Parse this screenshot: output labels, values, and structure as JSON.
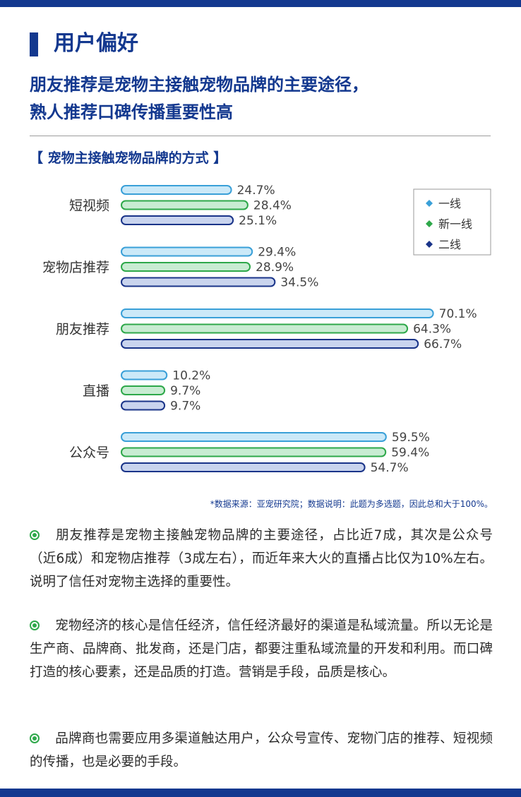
{
  "section": {
    "title": "用户偏好"
  },
  "headline": {
    "line1": "朋友推荐是宠物主接触宠物品牌的主要途径，",
    "line2": "熟人推荐口碑传播重要性高"
  },
  "chart_data": {
    "type": "bar",
    "orientation": "horizontal",
    "title": "【 宠物主接触宠物品牌的方式 】",
    "categories": [
      "短视频",
      "宠物店推荐",
      "朋友推荐",
      "直播",
      "公众号"
    ],
    "series": [
      {
        "name": "一线",
        "values": [
          24.7,
          29.4,
          70.1,
          10.2,
          59.5
        ],
        "fill": "#cbe9f8",
        "stroke": "#3aa0d8",
        "marker": "#3aa0d8"
      },
      {
        "name": "新一线",
        "values": [
          28.4,
          28.9,
          64.3,
          9.7,
          59.4
        ],
        "fill": "#c8ecd2",
        "stroke": "#2ea84a",
        "marker": "#2ea84a"
      },
      {
        "name": "二线",
        "values": [
          25.1,
          34.5,
          66.7,
          9.7,
          54.7
        ],
        "fill": "#c9d4ee",
        "stroke": "#1a3489",
        "marker": "#1a3489"
      }
    ],
    "value_suffix": "%",
    "xlim": [
      0,
      100
    ],
    "legend_position": "top-right"
  },
  "source": "*数据来源：亚宠研究院；数据说明：此题为多选题，因此总和大于100%。",
  "paragraphs": [
    "朋友推荐是宠物主接触宠物品牌的主要途径，占比近7成，其次是公众号（近6成）和宠物店推荐（3成左右），而近年来大火的直播占比仅为10%左右。说明了信任对宠物主选择的重要性。",
    "宠物经济的核心是信任经济，信任经济最好的渠道是私域流量。所以无论是生产商、品牌商、批发商，还是门店，都要注重私域流量的开发和利用。而口碑打造的核心要素，还是品质的打造。营销是手段，品质是核心。",
    "品牌商也需要应用多渠道触达用户，公众号宣传、宠物门店的推荐、短视频的传播，也是必要的手段。"
  ]
}
